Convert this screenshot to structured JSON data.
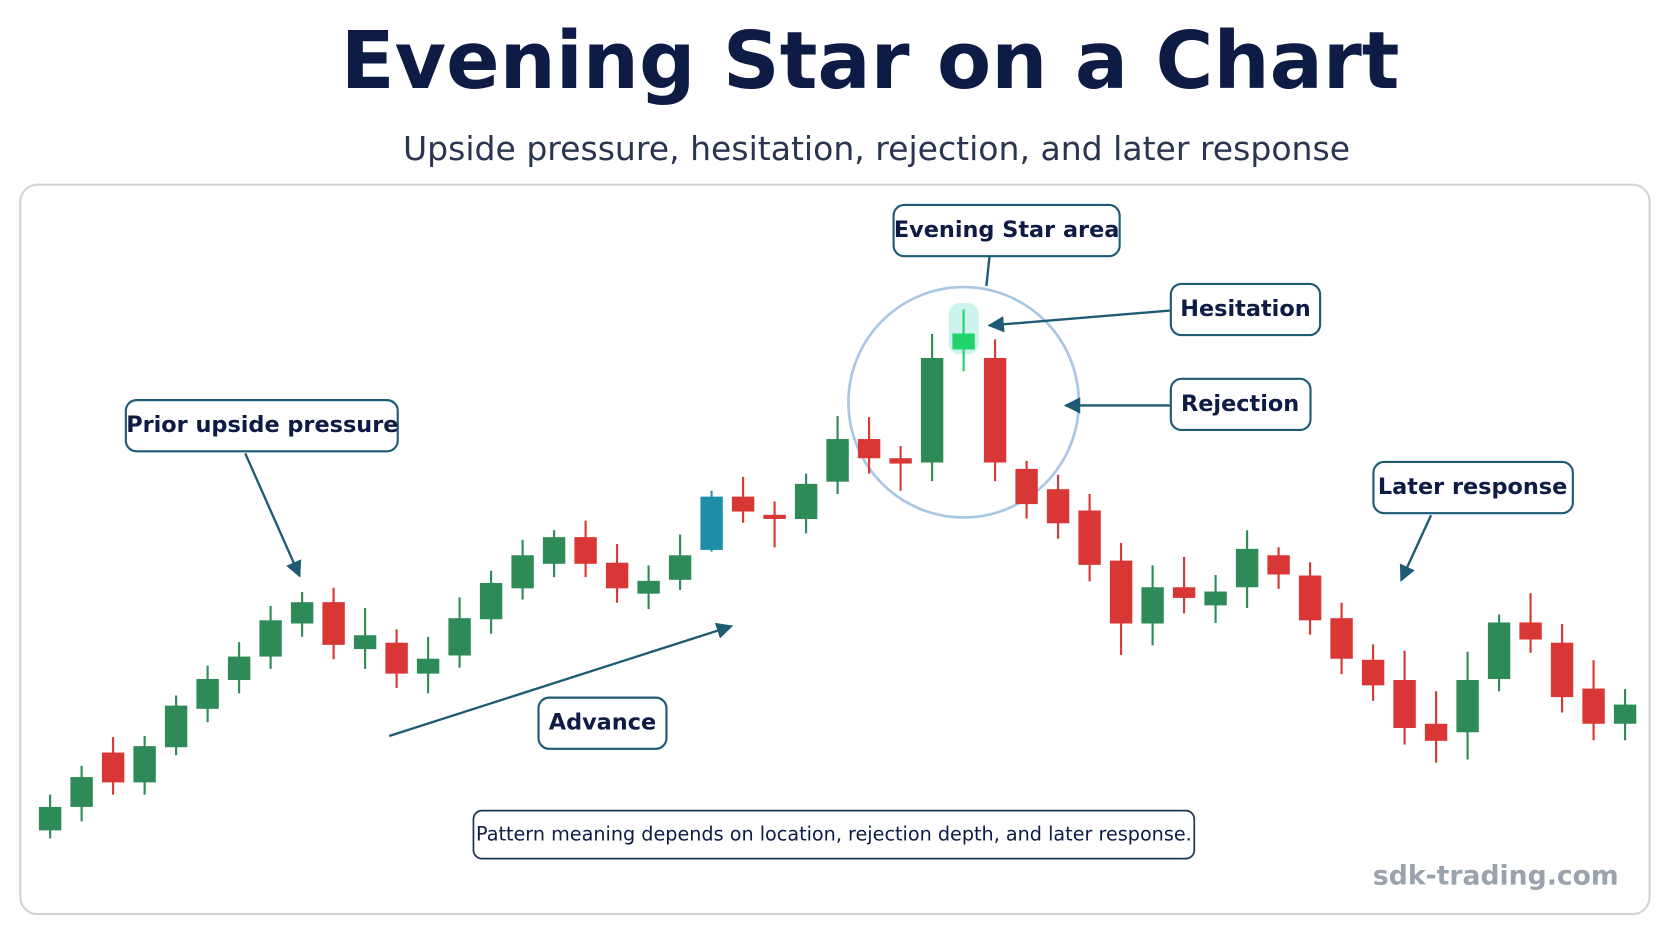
{
  "chart_data": {
    "type": "candlestick",
    "title": "Evening Star on a Chart",
    "subtitle": "Upside pressure, hesitation, rejection, and later response",
    "annotations": {
      "star_area": "Evening Star area",
      "hesitation": "Hesitation",
      "rejection": "Rejection",
      "prior": "Prior upside pressure",
      "later": "Later response",
      "advance": "Advance"
    },
    "footnote": "Pattern meaning depends on location, rejection depth, and later response.",
    "watermark": "sdk-trading.com",
    "ylim": [
      0,
      900
    ],
    "open": [
      122,
      144,
      194,
      167,
      200,
      236,
      263,
      285,
      316,
      335,
      292,
      297,
      269,
      286,
      320,
      349,
      372,
      396,
      372,
      344,
      357,
      385,
      434,
      417,
      414,
      449,
      488,
      470,
      467,
      573,
      564,
      460,
      441,
      421,
      374,
      316,
      349,
      333,
      350,
      379,
      360,
      320,
      281,
      262,
      221,
      214,
      264,
      316,
      297,
      254,
      222
    ],
    "high": [
      155,
      182,
      209,
      210,
      248,
      276,
      298,
      332,
      345,
      349,
      330,
      310,
      303,
      340,
      365,
      394,
      403,
      412,
      390,
      370,
      399,
      440,
      453,
      430,
      456,
      510,
      509,
      482,
      587,
      610,
      582,
      468,
      455,
      437,
      391,
      370,
      378,
      361,
      403,
      387,
      373,
      335,
      296,
      290,
      252,
      289,
      324,
      344,
      315,
      281,
      254
    ],
    "low": [
      114,
      130,
      155,
      155,
      192,
      223,
      250,
      273,
      303,
      282,
      273,
      255,
      250,
      274,
      306,
      338,
      359,
      359,
      335,
      329,
      347,
      383,
      410,
      387,
      400,
      437,
      456,
      440,
      449,
      552,
      449,
      414,
      395,
      355,
      286,
      295,
      325,
      316,
      330,
      348,
      305,
      268,
      243,
      202,
      185,
      188,
      252,
      288,
      232,
      206,
      206
    ],
    "close": [
      143,
      171,
      167,
      200,
      238,
      263,
      284,
      318,
      335,
      296,
      304,
      269,
      282,
      320,
      353,
      379,
      396,
      372,
      349,
      355,
      379,
      434,
      421,
      414,
      446,
      488,
      471,
      466,
      564,
      587,
      467,
      428,
      410,
      371,
      316,
      349,
      340,
      345,
      385,
      362,
      319,
      283,
      258,
      218,
      206,
      262,
      316,
      301,
      247,
      222,
      239
    ],
    "colors": [
      "#2e8b57",
      "#2e8b57",
      "#d93636",
      "#2e8b57",
      "#2e8b57",
      "#2e8b57",
      "#2e8b57",
      "#2e8b57",
      "#2e8b57",
      "#d93636",
      "#2e8b57",
      "#d93636",
      "#2e8b57",
      "#2e8b57",
      "#2e8b57",
      "#2e8b57",
      "#2e8b57",
      "#d93636",
      "#d93636",
      "#2e8b57",
      "#2e8b57",
      "#1f8fa8",
      "#d93636",
      "#d93636",
      "#2e8b57",
      "#2e8b57",
      "#d93636",
      "#d93636",
      "#2e8b57",
      "#22d36b",
      "#d93636",
      "#d93636",
      "#d93636",
      "#d93636",
      "#d93636",
      "#2e8b57",
      "#d93636",
      "#2e8b57",
      "#2e8b57",
      "#d93636",
      "#d93636",
      "#d93636",
      "#d93636",
      "#d93636",
      "#d93636",
      "#2e8b57",
      "#2e8b57",
      "#d93636",
      "#d93636",
      "#d93636",
      "#2e8b57"
    ]
  }
}
